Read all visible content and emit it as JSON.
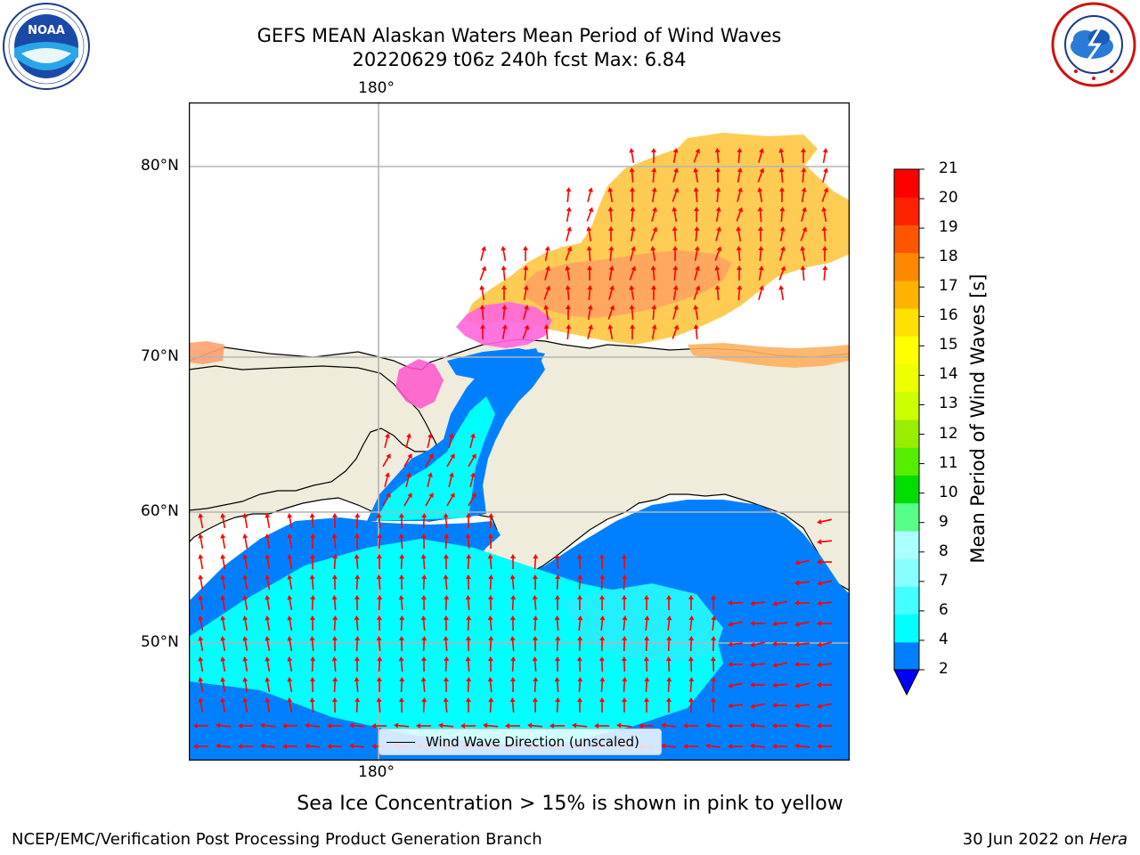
{
  "title": {
    "line1": "GEFS MEAN Alaskan Waters Mean Period of Wind Waves",
    "line2": "20220629 t06z 240h fcst   Max: 6.84"
  },
  "logos": {
    "noaa_text": "NOAA",
    "noaa_ring": "NATIONAL OCEANIC AND ATMOSPHERIC ADMINISTRATION · U.S. DEPARTMENT OF COMMERCE",
    "nws_ring": "NATIONAL WEATHER SERVICE"
  },
  "map": {
    "lon_label_top": "180°",
    "lon_label_bottom": "180°",
    "lat_labels": [
      "80°N",
      "70°N",
      "60°N",
      "50°N"
    ],
    "legend_label": "Wind Wave Direction (unscaled)",
    "colors": {
      "land": "#efecdc",
      "ocean_low": "#0080ff",
      "ocean_mid": "#00ffff",
      "ice_pink": "#ff6ee0",
      "ice_orange": "#ffb347",
      "ice_yellow": "#ffcc44",
      "arrow": "#ff0000",
      "grid": "#b4b4b4"
    }
  },
  "colorbar": {
    "label": "Mean Period of Wind Waves [s]",
    "ticks": [
      "2",
      "4",
      "6",
      "7",
      "8",
      "9",
      "10",
      "11",
      "12",
      "13",
      "14",
      "15",
      "16",
      "17",
      "18",
      "19",
      "20",
      "21"
    ],
    "colors": [
      "#0080ff",
      "#00ffff",
      "#44ffff",
      "#88ffff",
      "#aaffff",
      "#55ff88",
      "#00dd00",
      "#55ee00",
      "#99ee00",
      "#ccff00",
      "#eeff00",
      "#ffff00",
      "#ffe000",
      "#ffb300",
      "#ff8800",
      "#ff5500",
      "#ff2200",
      "#ff0000"
    ],
    "extend_color": "#0000ff"
  },
  "footer": {
    "note": "Sea Ice Concentration > 15% is shown in pink to yellow",
    "left": "NCEP/EMC/Verification Post Processing Product Generation Branch",
    "right_date": "30 Jun 2022 on ",
    "right_machine": "Hera"
  }
}
